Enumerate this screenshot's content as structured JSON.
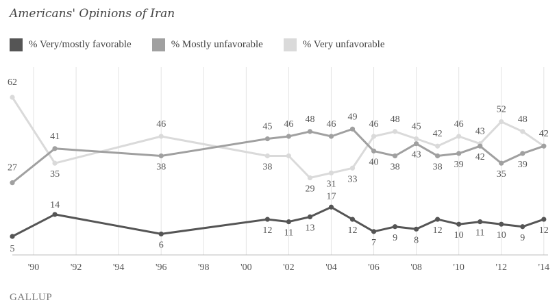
{
  "brand": "GALLUP",
  "chart_data": {
    "type": "line",
    "title": "Americans' Opinions of Iran",
    "x_tick_labels": [
      "'90",
      "'92",
      "'94",
      "'96",
      "'98",
      "'00",
      "'02",
      "'04",
      "'06",
      "'08",
      "'10",
      "'12",
      "'14"
    ],
    "x_ticks": [
      1990,
      1992,
      1994,
      1996,
      1998,
      2000,
      2002,
      2004,
      2006,
      2008,
      2010,
      2012,
      2014
    ],
    "xlim": [
      1989,
      2014.2
    ],
    "ylim": [
      5,
      62
    ],
    "grid": "vertical",
    "legend_position": "top-left",
    "series": [
      {
        "name": "% Very/mostly favorable",
        "color": "#555555",
        "x": [
          1989,
          1991,
          1996,
          2001,
          2002,
          2003,
          2004,
          2005,
          2006,
          2007,
          2008,
          2009,
          2010,
          2011,
          2012,
          2013,
          2014
        ],
        "values": [
          5,
          14,
          6,
          12,
          11,
          13,
          17,
          12,
          7,
          9,
          8,
          12,
          10,
          11,
          10,
          9,
          12
        ],
        "labels": [
          "5",
          "14",
          "6",
          "12",
          "11",
          "13",
          "17",
          "12",
          "7",
          "9",
          "8",
          "12",
          "10",
          "11",
          "10",
          "9",
          "12"
        ]
      },
      {
        "name": "% Mostly unfavorable",
        "color": "#a0a0a0",
        "x": [
          1989,
          1991,
          1996,
          2001,
          2002,
          2003,
          2004,
          2005,
          2006,
          2007,
          2008,
          2009,
          2010,
          2011,
          2012,
          2013,
          2014
        ],
        "values": [
          27,
          41,
          38,
          45,
          46,
          48,
          46,
          49,
          40,
          38,
          43,
          38,
          39,
          42,
          35,
          39,
          42
        ],
        "labels": [
          "27",
          "41",
          "38",
          "45",
          "46",
          "48",
          "46",
          "49",
          "40",
          "38",
          "43",
          "38",
          "39",
          "42",
          "35",
          "39",
          "42"
        ]
      },
      {
        "name": "% Very unfavorable",
        "color": "#dadada",
        "x": [
          1989,
          1991,
          1996,
          2001,
          2002,
          2003,
          2004,
          2005,
          2006,
          2007,
          2008,
          2009,
          2010,
          2011,
          2012,
          2013,
          2014
        ],
        "values": [
          62,
          35,
          46,
          38,
          38,
          29,
          31,
          33,
          46,
          48,
          45,
          42,
          46,
          43,
          52,
          48,
          42
        ],
        "labels": [
          "62",
          "35",
          "46",
          "38",
          "",
          "29",
          "31",
          "33",
          "46",
          "48",
          "45",
          "42",
          "46",
          "43",
          "52",
          "48",
          "42"
        ]
      }
    ]
  }
}
